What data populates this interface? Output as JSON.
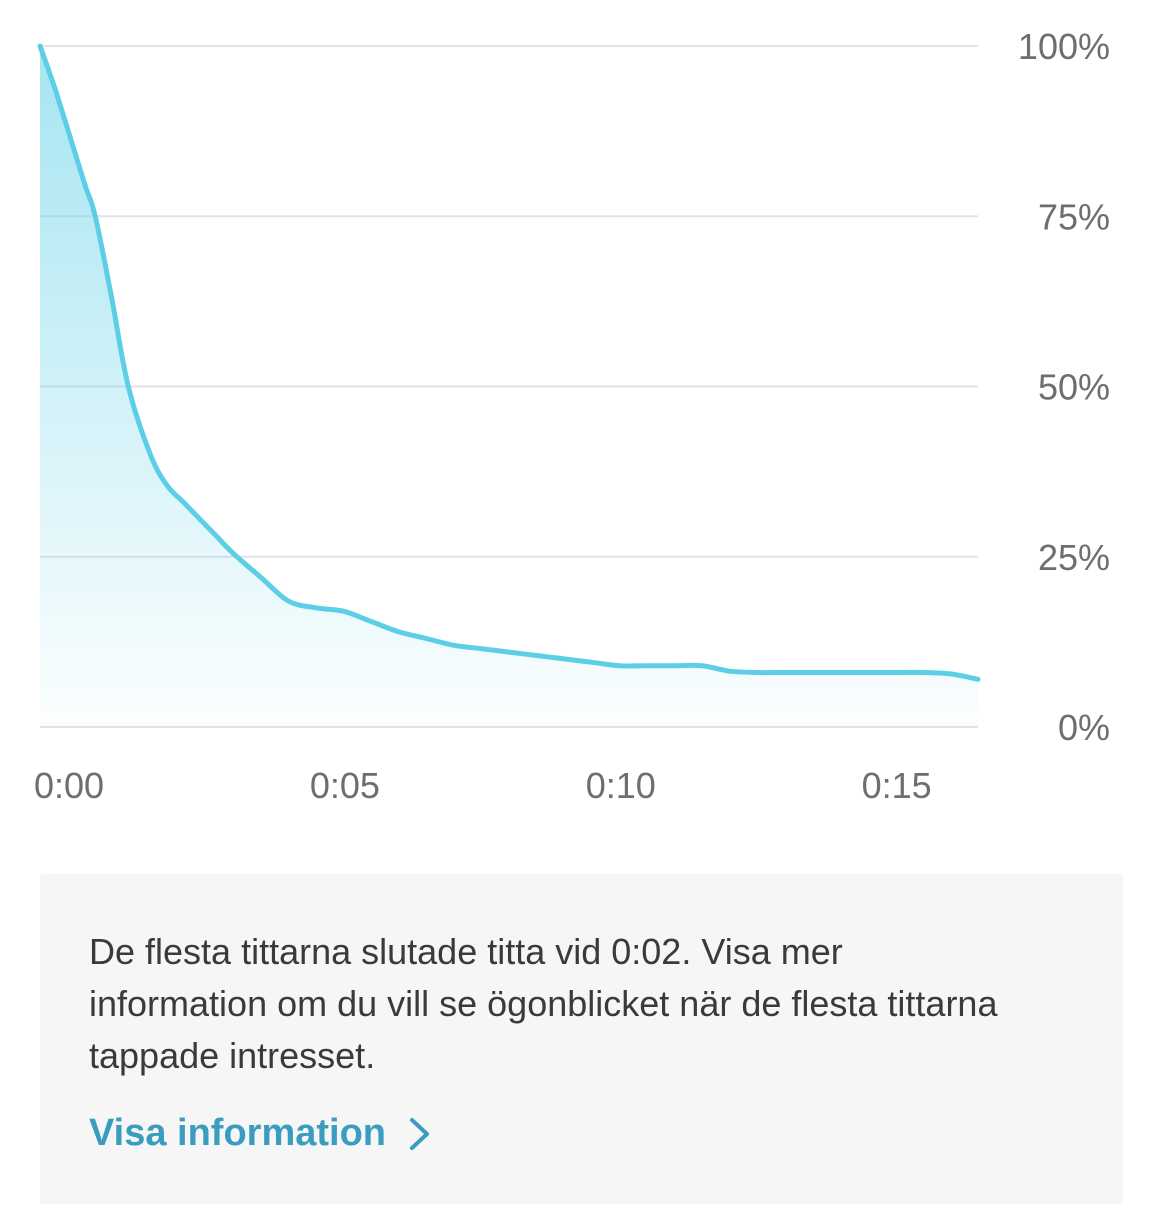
{
  "chart_data": {
    "type": "area",
    "x_tick_labels": [
      "0:00",
      "0:05",
      "0:10",
      "0:15"
    ],
    "y_tick_labels": [
      "100%",
      "75%",
      "50%",
      "25%",
      "0%"
    ],
    "ylim": [
      0,
      100
    ],
    "xlim_seconds": [
      0,
      17
    ],
    "x_ticks_seconds": [
      0,
      5,
      10,
      15
    ],
    "y_ticks": [
      100,
      75,
      50,
      25,
      0
    ],
    "grid": true,
    "y_axis_side": "right",
    "line_color": "#5ccfe6",
    "fill_color": "#5ccfe6",
    "series": [
      {
        "x_seconds": [
          0,
          0.3,
          0.8,
          1.0,
          1.3,
          1.6,
          2.0,
          2.3,
          2.6,
          2.9,
          3.2,
          3.5,
          4.0,
          4.5,
          5.0,
          5.5,
          6.0,
          6.5,
          7.0,
          7.5,
          8.0,
          8.5,
          9.0,
          9.5,
          10.0,
          10.5,
          11.0,
          11.5,
          12.0,
          12.5,
          13.0,
          13.5,
          14.0,
          14.5,
          15.0,
          15.5,
          16.0,
          16.5,
          17.0
        ],
        "values": [
          100,
          93,
          80,
          75,
          63,
          50,
          40,
          35.5,
          33,
          30.5,
          28,
          25.5,
          22,
          18.5,
          17.5,
          17,
          15.5,
          14,
          13,
          12,
          11.5,
          11,
          10.5,
          10,
          9.5,
          9,
          9,
          9,
          9,
          8.2,
          8,
          8,
          8,
          8,
          8,
          8,
          8,
          7.8,
          7
        ]
      }
    ]
  },
  "info": {
    "text": "De flesta tittarna slutade titta vid 0:02. Visa mer information om du vill se ögonblicket när de flesta tittarna tappade intresset.",
    "link_label": "Visa information",
    "link_color": "#3a9dbf"
  }
}
